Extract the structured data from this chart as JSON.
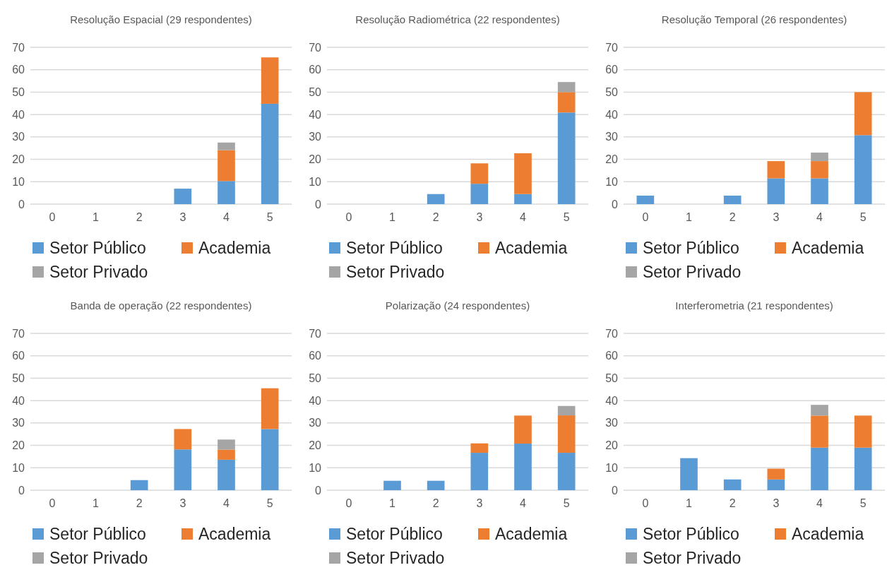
{
  "chart_data": [
    {
      "type": "bar",
      "stacked": true,
      "title": "Resolução Espacial (29 respondentes)",
      "categories": [
        "0",
        "1",
        "2",
        "3",
        "4",
        "5"
      ],
      "ylim": [
        0,
        70
      ],
      "yticks": [
        0,
        10,
        20,
        30,
        40,
        50,
        60,
        70
      ],
      "grid": "y",
      "legend": "bottom",
      "series": [
        {
          "name": "Setor Público",
          "color": "#5b9bd5",
          "values": [
            0,
            0,
            0,
            6.9,
            10.3,
            44.8
          ]
        },
        {
          "name": "Academia",
          "color": "#ed7d31",
          "values": [
            0,
            0,
            0,
            0,
            13.8,
            20.7
          ]
        },
        {
          "name": "Setor Privado",
          "color": "#a5a5a5",
          "values": [
            0,
            0,
            0,
            0,
            3.4,
            0
          ]
        }
      ]
    },
    {
      "type": "bar",
      "stacked": true,
      "title": "Resolução Radiométrica (22 respondentes)",
      "categories": [
        "0",
        "1",
        "2",
        "3",
        "4",
        "5"
      ],
      "ylim": [
        0,
        70
      ],
      "yticks": [
        0,
        10,
        20,
        30,
        40,
        50,
        60,
        70
      ],
      "grid": "y",
      "legend": "bottom",
      "series": [
        {
          "name": "Setor Público",
          "color": "#5b9bd5",
          "values": [
            0,
            0,
            4.5,
            9.1,
            4.5,
            40.9
          ]
        },
        {
          "name": "Academia",
          "color": "#ed7d31",
          "values": [
            0,
            0,
            0,
            9.1,
            18.2,
            9.1
          ]
        },
        {
          "name": "Setor Privado",
          "color": "#a5a5a5",
          "values": [
            0,
            0,
            0,
            0,
            0,
            4.5
          ]
        }
      ]
    },
    {
      "type": "bar",
      "stacked": true,
      "title": "Resolução Temporal (26 respondentes)",
      "categories": [
        "0",
        "1",
        "2",
        "3",
        "4",
        "5"
      ],
      "ylim": [
        0,
        70
      ],
      "yticks": [
        0,
        10,
        20,
        30,
        40,
        50,
        60,
        70
      ],
      "grid": "y",
      "legend": "bottom",
      "series": [
        {
          "name": "Setor Público",
          "color": "#5b9bd5",
          "values": [
            3.8,
            0,
            3.8,
            11.5,
            11.5,
            30.8
          ]
        },
        {
          "name": "Academia",
          "color": "#ed7d31",
          "values": [
            0,
            0,
            0,
            7.7,
            7.7,
            19.2
          ]
        },
        {
          "name": "Setor Privado",
          "color": "#a5a5a5",
          "values": [
            0,
            0,
            0,
            0,
            3.8,
            0
          ]
        }
      ]
    },
    {
      "type": "bar",
      "stacked": true,
      "title": "Banda de operação (22 respondentes)",
      "categories": [
        "0",
        "1",
        "2",
        "3",
        "4",
        "5"
      ],
      "ylim": [
        0,
        70
      ],
      "yticks": [
        0,
        10,
        20,
        30,
        40,
        50,
        60,
        70
      ],
      "grid": "y",
      "legend": "bottom",
      "series": [
        {
          "name": "Setor Público",
          "color": "#5b9bd5",
          "values": [
            0,
            0,
            4.5,
            18.2,
            13.6,
            27.3
          ]
        },
        {
          "name": "Academia",
          "color": "#ed7d31",
          "values": [
            0,
            0,
            0,
            9.1,
            4.5,
            18.2
          ]
        },
        {
          "name": "Setor Privado",
          "color": "#a5a5a5",
          "values": [
            0,
            0,
            0,
            0,
            4.5,
            0
          ]
        }
      ]
    },
    {
      "type": "bar",
      "stacked": true,
      "title": "Polarização (24 respondentes)",
      "categories": [
        "0",
        "1",
        "2",
        "3",
        "4",
        "5"
      ],
      "ylim": [
        0,
        70
      ],
      "yticks": [
        0,
        10,
        20,
        30,
        40,
        50,
        60,
        70
      ],
      "grid": "y",
      "legend": "bottom",
      "series": [
        {
          "name": "Setor Público",
          "color": "#5b9bd5",
          "values": [
            0,
            4.2,
            4.2,
            16.7,
            20.8,
            16.7
          ]
        },
        {
          "name": "Academia",
          "color": "#ed7d31",
          "values": [
            0,
            0,
            0,
            4.2,
            12.5,
            16.7
          ]
        },
        {
          "name": "Setor Privado",
          "color": "#a5a5a5",
          "values": [
            0,
            0,
            0,
            0,
            0,
            4.2
          ]
        }
      ]
    },
    {
      "type": "bar",
      "stacked": true,
      "title": "Interferometria (21 respondentes)",
      "categories": [
        "0",
        "1",
        "2",
        "3",
        "4",
        "5"
      ],
      "ylim": [
        0,
        70
      ],
      "yticks": [
        0,
        10,
        20,
        30,
        40,
        50,
        60,
        70
      ],
      "grid": "y",
      "legend": "bottom",
      "series": [
        {
          "name": "Setor Público",
          "color": "#5b9bd5",
          "values": [
            0,
            14.3,
            4.8,
            4.8,
            19,
            19
          ]
        },
        {
          "name": "Academia",
          "color": "#ed7d31",
          "values": [
            0,
            0,
            0,
            4.8,
            14.3,
            14.3
          ]
        },
        {
          "name": "Setor Privado",
          "color": "#a5a5a5",
          "values": [
            0,
            0,
            0,
            0,
            4.8,
            0
          ]
        }
      ]
    }
  ]
}
